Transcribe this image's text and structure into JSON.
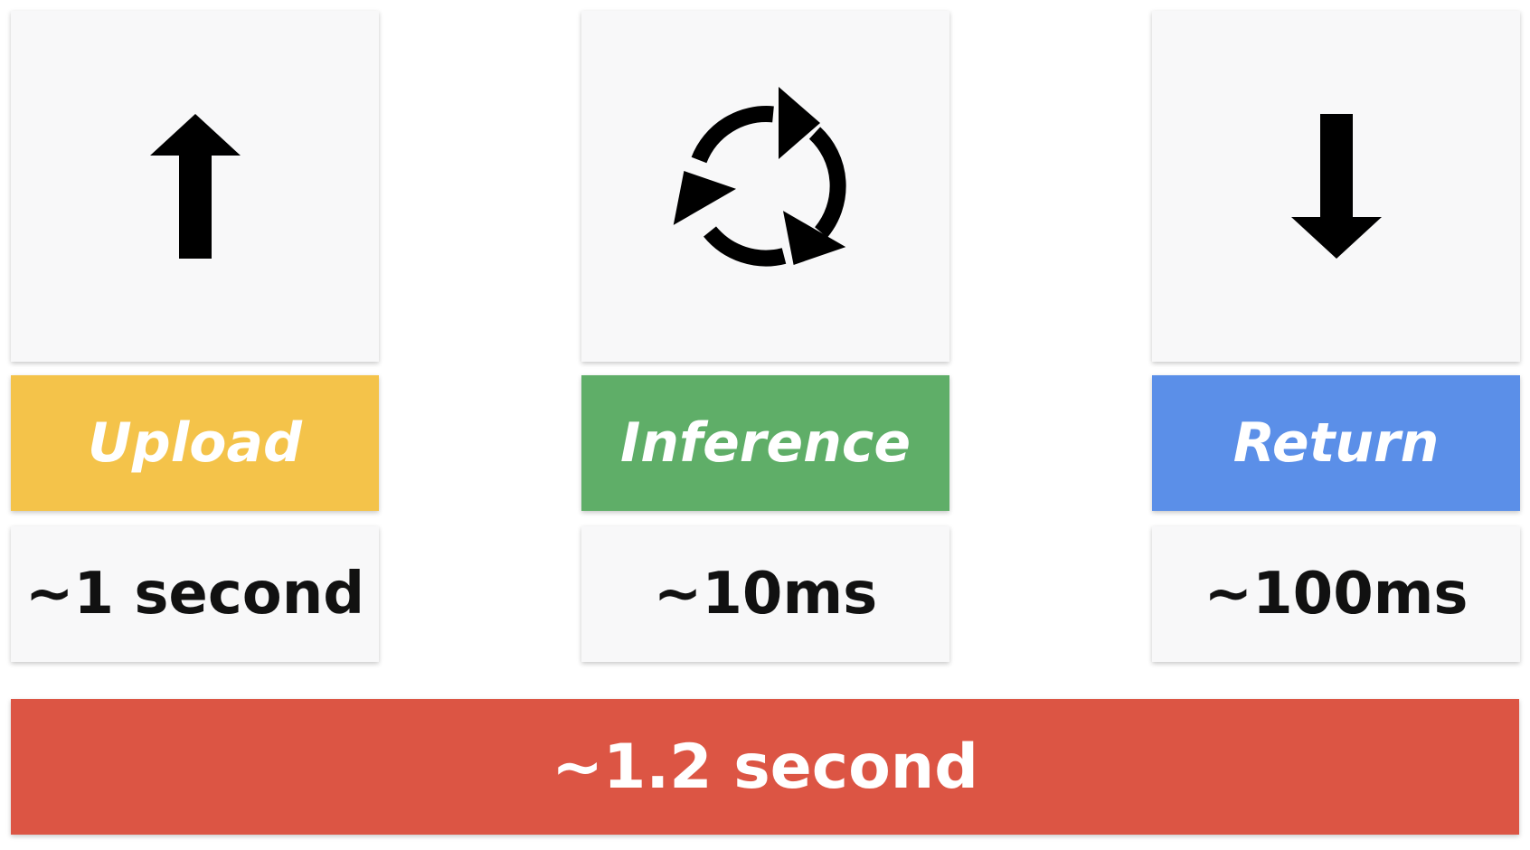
{
  "stages": [
    {
      "icon": "arrow-up-icon",
      "label": "Upload",
      "time": "~1 second",
      "color": "#f4c34a"
    },
    {
      "icon": "cycle-arrows-icon",
      "label": "Inference",
      "time": "~10ms",
      "color": "#5fae68"
    },
    {
      "icon": "arrow-down-icon",
      "label": "Return",
      "time": "~100ms",
      "color": "#5b8fe8"
    }
  ],
  "total": {
    "label": "~1.2 second",
    "color": "#dc5544"
  }
}
